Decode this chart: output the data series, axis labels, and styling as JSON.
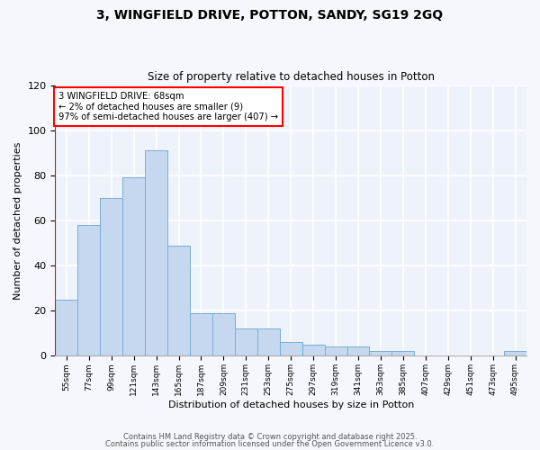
{
  "title1": "3, WINGFIELD DRIVE, POTTON, SANDY, SG19 2GQ",
  "title2": "Size of property relative to detached houses in Potton",
  "xlabel": "Distribution of detached houses by size in Potton",
  "ylabel": "Number of detached properties",
  "bar_color": "#c5d8f0",
  "bar_edge_color": "#7aadd4",
  "background_color": "#eef2fa",
  "grid_color": "#ffffff",
  "fig_background": "#f5f7fc",
  "bin_labels": [
    "55sqm",
    "77sqm",
    "99sqm",
    "121sqm",
    "143sqm",
    "165sqm",
    "187sqm",
    "209sqm",
    "231sqm",
    "253sqm",
    "275sqm",
    "297sqm",
    "319sqm",
    "341sqm",
    "363sqm",
    "385sqm",
    "407sqm",
    "429sqm",
    "451sqm",
    "473sqm",
    "495sqm"
  ],
  "bar_heights": [
    25,
    58,
    70,
    79,
    91,
    49,
    19,
    19,
    12,
    12,
    6,
    5,
    4,
    4,
    2,
    2,
    0,
    0,
    0,
    0,
    2
  ],
  "ylim": [
    0,
    120
  ],
  "yticks": [
    0,
    20,
    40,
    60,
    80,
    100,
    120
  ],
  "annotation_line1": "3 WINGFIELD DRIVE: 68sqm",
  "annotation_line2": "← 2% of detached houses are smaller (9)",
  "annotation_line3": "97% of semi-detached houses are larger (407) →",
  "footer1": "Contains HM Land Registry data © Crown copyright and database right 2025.",
  "footer2": "Contains public sector information licensed under the Open Government Licence v3.0."
}
